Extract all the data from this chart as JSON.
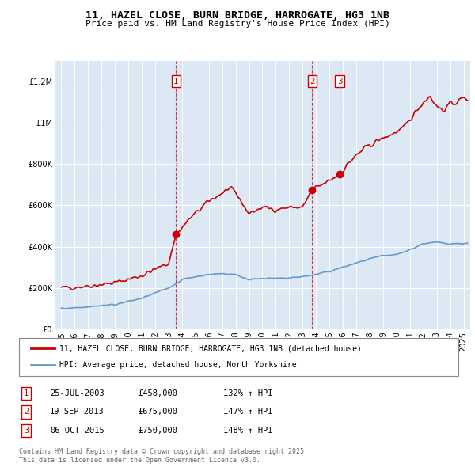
{
  "title": "11, HAZEL CLOSE, BURN BRIDGE, HARROGATE, HG3 1NB",
  "subtitle": "Price paid vs. HM Land Registry's House Price Index (HPI)",
  "legend_line1": "11, HAZEL CLOSE, BURN BRIDGE, HARROGATE, HG3 1NB (detached house)",
  "legend_line2": "HPI: Average price, detached house, North Yorkshire",
  "footer1": "Contains HM Land Registry data © Crown copyright and database right 2025.",
  "footer2": "This data is licensed under the Open Government Licence v3.0.",
  "transactions": [
    {
      "num": 1,
      "date": "25-JUL-2003",
      "price": "£458,000",
      "hpi": "132% ↑ HPI"
    },
    {
      "num": 2,
      "date": "19-SEP-2013",
      "price": "£675,000",
      "hpi": "147% ↑ HPI"
    },
    {
      "num": 3,
      "date": "06-OCT-2015",
      "price": "£750,000",
      "hpi": "148% ↑ HPI"
    }
  ],
  "sale_years": [
    2003.56,
    2013.72,
    2015.76
  ],
  "sale_prices": [
    458000,
    675000,
    750000
  ],
  "plot_bg_color": "#dce9f5",
  "red_color": "#cc0000",
  "blue_color": "#6699cc",
  "ylim_max": 1300000,
  "xlim_start": 1994.5,
  "xlim_end": 2025.5,
  "red_keypoints": [
    [
      1995.0,
      200000
    ],
    [
      1997.0,
      210000
    ],
    [
      1999.0,
      225000
    ],
    [
      2001.0,
      260000
    ],
    [
      2003.0,
      320000
    ],
    [
      2003.56,
      458000
    ],
    [
      2004.5,
      530000
    ],
    [
      2006.0,
      620000
    ],
    [
      2007.5,
      680000
    ],
    [
      2008.0,
      660000
    ],
    [
      2009.0,
      560000
    ],
    [
      2010.0,
      590000
    ],
    [
      2011.0,
      580000
    ],
    [
      2012.0,
      590000
    ],
    [
      2013.0,
      590000
    ],
    [
      2013.72,
      675000
    ],
    [
      2014.5,
      700000
    ],
    [
      2015.0,
      720000
    ],
    [
      2015.76,
      750000
    ],
    [
      2016.5,
      810000
    ],
    [
      2017.5,
      870000
    ],
    [
      2018.5,
      910000
    ],
    [
      2019.5,
      940000
    ],
    [
      2020.5,
      970000
    ],
    [
      2021.5,
      1060000
    ],
    [
      2022.0,
      1100000
    ],
    [
      2022.5,
      1130000
    ],
    [
      2023.0,
      1080000
    ],
    [
      2023.5,
      1060000
    ],
    [
      2024.0,
      1090000
    ],
    [
      2024.5,
      1100000
    ],
    [
      2025.0,
      1120000
    ]
  ],
  "blue_keypoints": [
    [
      1995.0,
      100000
    ],
    [
      1997.0,
      110000
    ],
    [
      1999.0,
      120000
    ],
    [
      2001.0,
      150000
    ],
    [
      2003.0,
      200000
    ],
    [
      2004.0,
      240000
    ],
    [
      2005.0,
      255000
    ],
    [
      2006.0,
      265000
    ],
    [
      2007.0,
      270000
    ],
    [
      2008.0,
      265000
    ],
    [
      2009.0,
      240000
    ],
    [
      2010.0,
      248000
    ],
    [
      2011.0,
      245000
    ],
    [
      2012.0,
      248000
    ],
    [
      2013.0,
      255000
    ],
    [
      2014.0,
      265000
    ],
    [
      2015.0,
      280000
    ],
    [
      2016.0,
      300000
    ],
    [
      2017.0,
      320000
    ],
    [
      2018.0,
      340000
    ],
    [
      2019.0,
      355000
    ],
    [
      2020.0,
      360000
    ],
    [
      2021.0,
      385000
    ],
    [
      2022.0,
      415000
    ],
    [
      2023.0,
      420000
    ],
    [
      2024.0,
      415000
    ],
    [
      2025.0,
      415000
    ]
  ]
}
